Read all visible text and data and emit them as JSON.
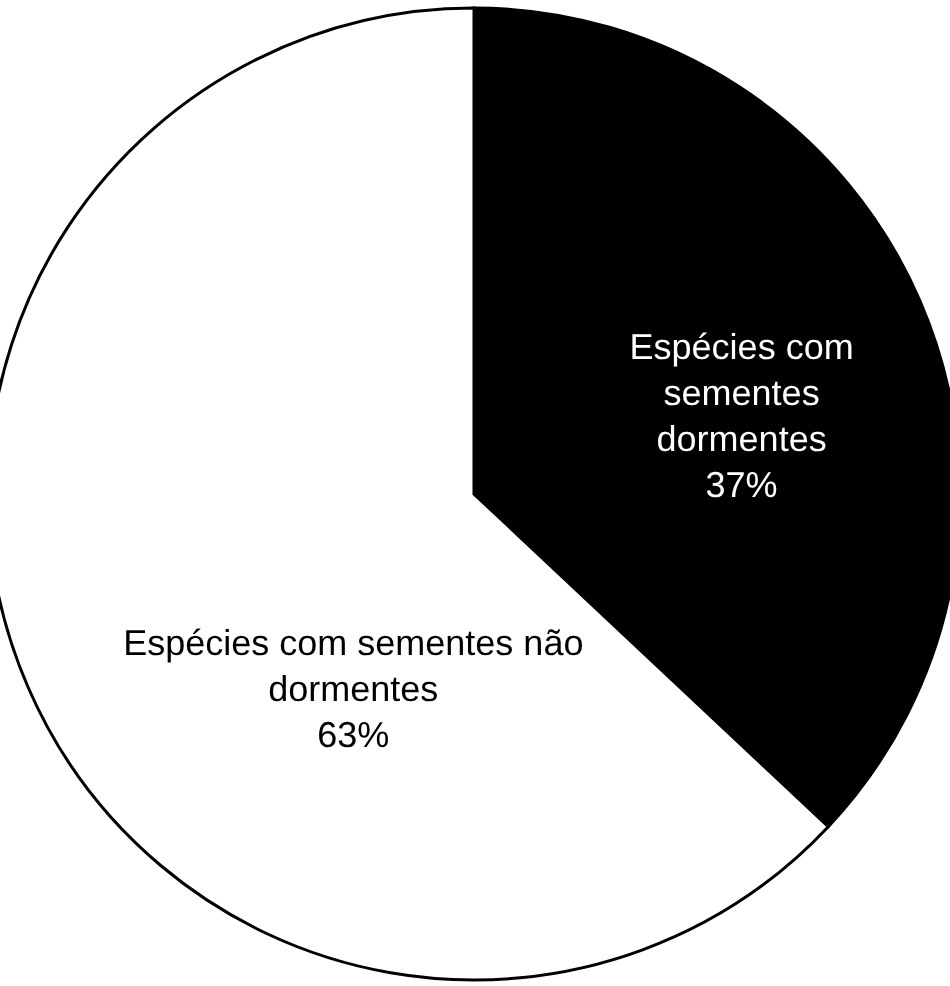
{
  "chart_data": {
    "type": "pie",
    "categories": [
      "Espécies com sementes dormentes",
      "Espécies com sementes não dormentes"
    ],
    "values": [
      37,
      63
    ],
    "colors": [
      "#000000",
      "#ffffff"
    ],
    "value_labels": [
      "37%",
      "63%"
    ]
  }
}
